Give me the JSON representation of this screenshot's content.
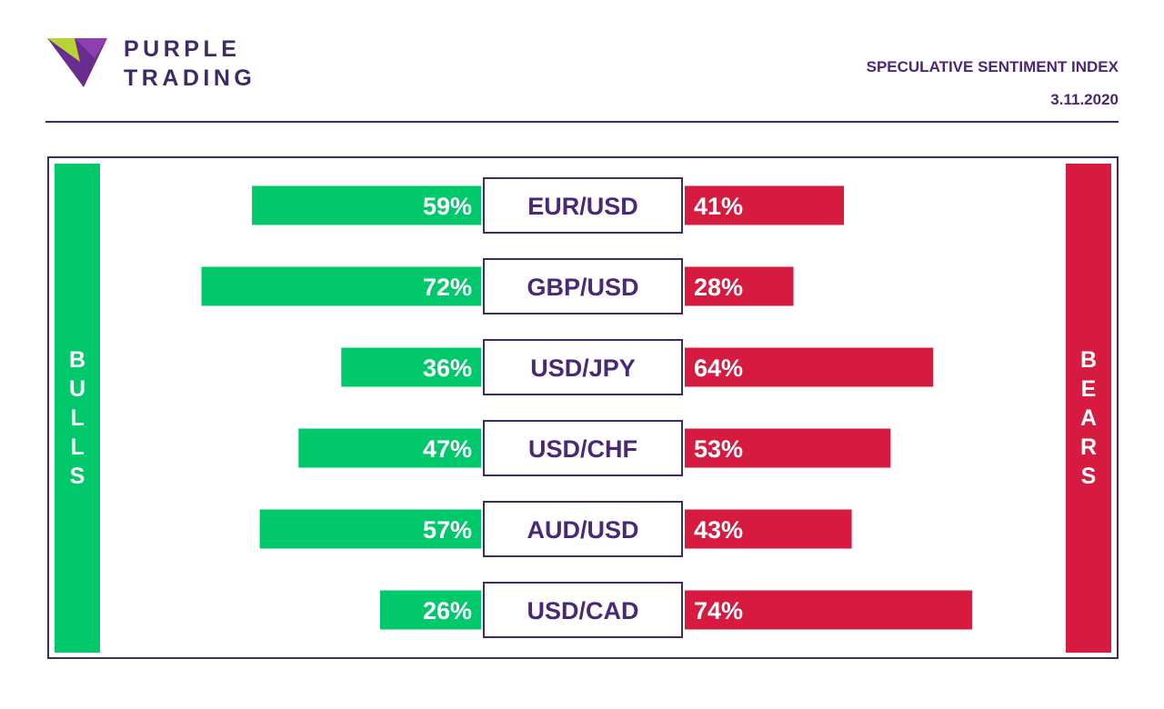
{
  "brand": {
    "line1": "PURPLE",
    "line2": "TRADING"
  },
  "header": {
    "title": "SPECULATIVE SENTIMENT INDEX",
    "date": "3.11.2020"
  },
  "labels": {
    "bulls": "BULLS",
    "bears": "BEARS"
  },
  "colors": {
    "bull": "#00c86b",
    "bear": "#d71a3f",
    "accent": "#4a2778",
    "border": "#3f2a63"
  },
  "chart_data": {
    "type": "bar",
    "categories": [
      "EUR/USD",
      "GBP/USD",
      "USD/JPY",
      "USD/CHF",
      "AUD/USD",
      "USD/CAD"
    ],
    "series": [
      {
        "name": "BULLS",
        "values": [
          59,
          72,
          36,
          47,
          57,
          26
        ],
        "labels": [
          "59%",
          "72%",
          "36%",
          "47%",
          "57%",
          "26%"
        ]
      },
      {
        "name": "BEARS",
        "values": [
          41,
          28,
          64,
          53,
          43,
          74
        ],
        "labels": [
          "41%",
          "28%",
          "64%",
          "53%",
          "43%",
          "74%"
        ]
      }
    ]
  }
}
